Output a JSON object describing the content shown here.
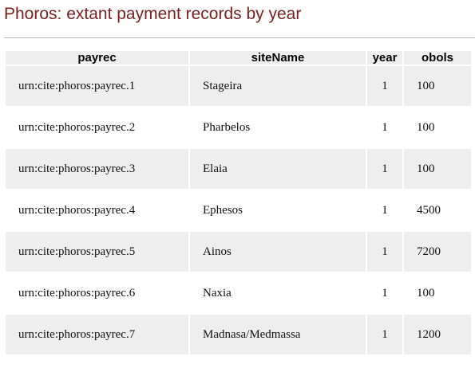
{
  "page": {
    "title": "Phoros: extant payment records by year"
  },
  "table": {
    "columns": [
      "payrec",
      "siteName",
      "year",
      "obols"
    ],
    "rows": [
      {
        "payrec": "urn:cite:phoros:payrec.1",
        "siteName": "Stageira",
        "year": "1",
        "obols": "100"
      },
      {
        "payrec": "urn:cite:phoros:payrec.2",
        "siteName": "Pharbelos",
        "year": "1",
        "obols": "100"
      },
      {
        "payrec": "urn:cite:phoros:payrec.3",
        "siteName": "Elaia",
        "year": "1",
        "obols": "100"
      },
      {
        "payrec": "urn:cite:phoros:payrec.4",
        "siteName": "Ephesos",
        "year": "1",
        "obols": "4500"
      },
      {
        "payrec": "urn:cite:phoros:payrec.5",
        "siteName": "Ainos",
        "year": "1",
        "obols": "7200"
      },
      {
        "payrec": "urn:cite:phoros:payrec.6",
        "siteName": "Naxia",
        "year": "1",
        "obols": "100"
      },
      {
        "payrec": "urn:cite:phoros:payrec.7",
        "siteName": "Madnasa/Medmassa",
        "year": "1",
        "obols": "1200"
      }
    ]
  },
  "colors": {
    "title": "#7a1f1f",
    "shaded_row": "#eeeeee",
    "rule": "#b4b4b4"
  }
}
